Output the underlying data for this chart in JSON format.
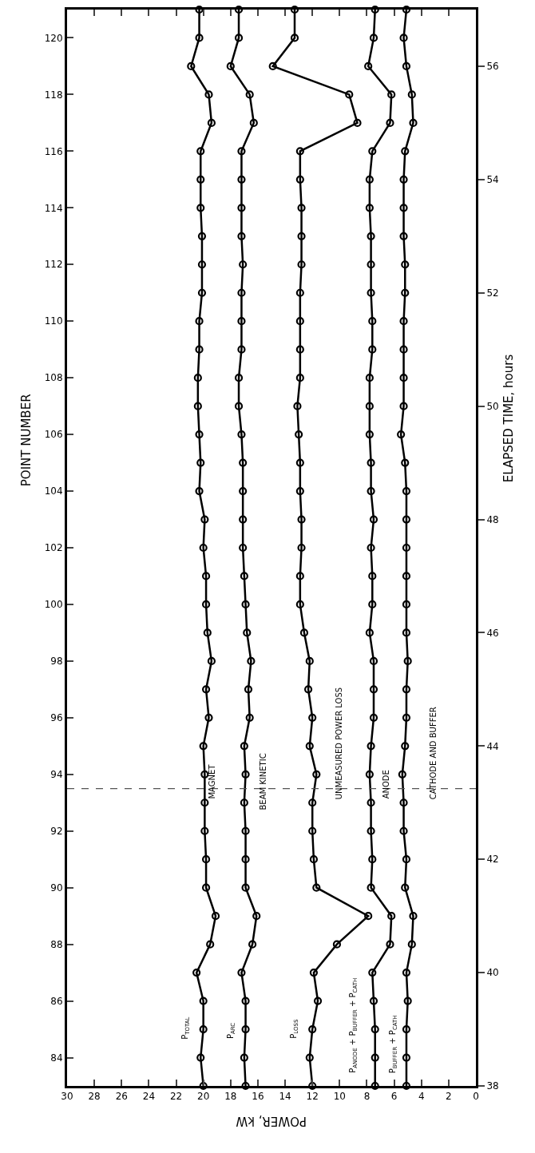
{
  "chart_data": {
    "type": "line",
    "series": [
      {
        "name": "P$_{TOTAL}$",
        "color": "#000000",
        "x": [
          20.0,
          20.2,
          20.0,
          20.0,
          20.5,
          19.5,
          19.1,
          19.8,
          19.8,
          19.9,
          19.9,
          19.9,
          20.0,
          19.6,
          19.8,
          19.4,
          19.7,
          19.8,
          19.8,
          20.0,
          19.9,
          20.3,
          20.2,
          20.3,
          20.4,
          20.4,
          20.3,
          20.3,
          20.1,
          20.1,
          20.1,
          20.2,
          20.2,
          20.2,
          19.4,
          19.6,
          20.9,
          20.3,
          20.3
        ],
        "values": [
          83,
          84,
          85,
          86,
          87,
          88,
          89,
          90,
          91,
          92,
          93,
          94,
          95,
          96,
          97,
          98,
          99,
          100,
          101,
          102,
          103,
          104,
          105,
          106,
          107,
          108,
          109,
          110,
          111,
          112,
          113,
          114,
          115,
          116,
          117,
          118,
          119,
          120,
          121
        ]
      },
      {
        "name": "P$_{ARC}$",
        "color": "#000000",
        "x": [
          16.9,
          17.0,
          16.9,
          16.9,
          17.2,
          16.4,
          16.1,
          16.9,
          16.9,
          16.9,
          17.0,
          16.9,
          17.0,
          16.6,
          16.7,
          16.5,
          16.8,
          16.9,
          17.0,
          17.1,
          17.1,
          17.1,
          17.1,
          17.2,
          17.4,
          17.4,
          17.2,
          17.2,
          17.2,
          17.1,
          17.2,
          17.2,
          17.2,
          17.2,
          16.3,
          16.6,
          18.0,
          17.4,
          17.4
        ],
        "values": [
          83,
          84,
          85,
          86,
          87,
          88,
          89,
          90,
          91,
          92,
          93,
          94,
          95,
          96,
          97,
          98,
          99,
          100,
          101,
          102,
          103,
          104,
          105,
          106,
          107,
          108,
          109,
          110,
          111,
          112,
          113,
          114,
          115,
          116,
          117,
          118,
          119,
          120,
          121
        ]
      },
      {
        "name": "P$_{LOSS}$",
        "color": "#000000",
        "x": [
          12.0,
          12.2,
          12.0,
          11.6,
          11.9,
          10.2,
          7.9,
          11.7,
          11.9,
          12.0,
          12.0,
          11.7,
          12.2,
          12.0,
          12.3,
          12.2,
          12.6,
          12.9,
          12.9,
          12.8,
          12.8,
          12.9,
          12.9,
          13.0,
          13.1,
          12.9,
          12.9,
          12.9,
          12.9,
          12.8,
          12.8,
          12.8,
          12.9,
          12.9,
          8.7,
          9.3,
          14.9,
          13.3,
          13.3
        ],
        "values": [
          83,
          84,
          85,
          86,
          87,
          88,
          89,
          90,
          91,
          92,
          93,
          94,
          95,
          96,
          97,
          98,
          99,
          100,
          101,
          102,
          103,
          104,
          105,
          106,
          107,
          108,
          109,
          110,
          111,
          112,
          113,
          114,
          115,
          116,
          117,
          118,
          119,
          120,
          121
        ]
      },
      {
        "name": "P$_{ANODE}$ + P$_{BUFFER}$ + P$_{CATH}$",
        "color": "#000000",
        "x": [
          7.4,
          7.4,
          7.4,
          7.5,
          7.6,
          6.3,
          6.2,
          7.7,
          7.6,
          7.7,
          7.7,
          7.8,
          7.7,
          7.5,
          7.5,
          7.5,
          7.8,
          7.6,
          7.6,
          7.7,
          7.5,
          7.7,
          7.7,
          7.8,
          7.8,
          7.8,
          7.6,
          7.6,
          7.7,
          7.7,
          7.7,
          7.8,
          7.8,
          7.6,
          6.3,
          6.2,
          7.9,
          7.5,
          7.4
        ],
        "values": [
          83,
          84,
          85,
          86,
          87,
          88,
          89,
          90,
          91,
          92,
          93,
          94,
          95,
          96,
          97,
          98,
          99,
          100,
          101,
          102,
          103,
          104,
          105,
          106,
          107,
          108,
          109,
          110,
          111,
          112,
          113,
          114,
          115,
          116,
          117,
          118,
          119,
          120,
          121
        ]
      },
      {
        "name": "P$_{BUFFER}$ + P$_{CATH}$",
        "color": "#000000",
        "x": [
          5.1,
          5.1,
          5.1,
          5.0,
          5.1,
          4.7,
          4.6,
          5.2,
          5.1,
          5.3,
          5.3,
          5.4,
          5.2,
          5.1,
          5.1,
          5.0,
          5.1,
          5.1,
          5.1,
          5.1,
          5.1,
          5.1,
          5.2,
          5.5,
          5.3,
          5.3,
          5.3,
          5.3,
          5.2,
          5.2,
          5.3,
          5.3,
          5.3,
          5.2,
          4.6,
          4.7,
          5.1,
          5.3,
          5.1
        ],
        "values": [
          83,
          84,
          85,
          86,
          87,
          88,
          89,
          90,
          91,
          92,
          93,
          94,
          95,
          96,
          97,
          98,
          99,
          100,
          101,
          102,
          103,
          104,
          105,
          106,
          107,
          108,
          109,
          110,
          111,
          112,
          113,
          114,
          115,
          116,
          117,
          118,
          119,
          120,
          121
        ]
      }
    ],
    "xlabel": "POWER, kW",
    "xlim": [
      30,
      0
    ],
    "xticks": [
      30,
      28,
      26,
      24,
      22,
      20,
      18,
      16,
      14,
      12,
      10,
      8,
      6,
      4,
      2,
      0
    ],
    "ylabel": "POINT NUMBER",
    "ylim": [
      83,
      121
    ],
    "yticks": [
      84,
      86,
      88,
      90,
      92,
      94,
      96,
      98,
      100,
      102,
      104,
      106,
      108,
      110,
      112,
      114,
      116,
      118,
      120
    ],
    "y2label": "ELAPSED TIME, hours",
    "y2lim": [
      38,
      57
    ],
    "y2ticks": [
      38,
      40,
      42,
      44,
      46,
      48,
      50,
      52,
      54,
      56
    ],
    "annotations": [
      "MAGNET",
      "BEAM KINETIC",
      "UNMEASURED POWER LOSS",
      "ANODE",
      "CATHODE AND BUFFER"
    ],
    "ref_lines": [
      {
        "axis": "y",
        "value": 93.5,
        "color": "#555555",
        "line_style": "dashed"
      }
    ],
    "marker": "circle",
    "line_style": "solid",
    "legend": false
  }
}
